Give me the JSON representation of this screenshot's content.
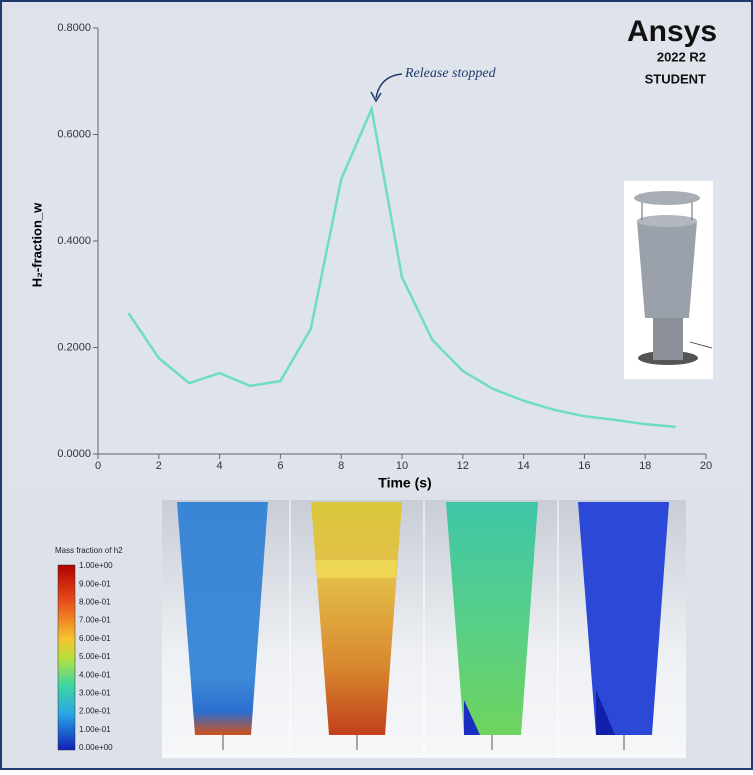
{
  "chart_data": {
    "type": "line",
    "x": [
      1,
      2,
      3,
      4,
      5,
      6,
      7,
      8,
      9,
      10,
      11,
      12,
      13,
      14,
      15,
      16,
      17,
      18,
      19
    ],
    "values": [
      0.265,
      0.18,
      0.133,
      0.152,
      0.128,
      0.137,
      0.235,
      0.516,
      0.648,
      0.332,
      0.214,
      0.156,
      0.122,
      0.1,
      0.083,
      0.071,
      0.064,
      0.056,
      0.051
    ],
    "color": "#6fdcc4",
    "xlabel": "Time (s)",
    "ylabel": "H₂-fraction_w",
    "xlim": [
      0,
      20
    ],
    "xticks": [
      0,
      2,
      4,
      6,
      8,
      10,
      12,
      14,
      16,
      18,
      20
    ],
    "ylim": [
      0,
      0.8
    ],
    "yticks": [
      {
        "value": 0,
        "label": "0.0000"
      },
      {
        "value": 0.2,
        "label": "0.2000"
      },
      {
        "value": 0.4,
        "label": "0.4000"
      },
      {
        "value": 0.6,
        "label": "0.6000"
      },
      {
        "value": 0.8,
        "label": "0.8000"
      }
    ],
    "annotation": "Release stopped"
  },
  "logo": {
    "name": "Ansys",
    "version": "2022 R2",
    "edition": "STUDENT"
  },
  "colorbar": {
    "title": "Mass fraction of h2",
    "labels": [
      "1.00e+00",
      "9.00e-01",
      "8.00e-01",
      "7.00e-01",
      "6.00e-01",
      "5.00e-01",
      "4.00e-01",
      "3.00e-01",
      "2.00e-01",
      "1.00e-01",
      "0.00e+00"
    ]
  }
}
